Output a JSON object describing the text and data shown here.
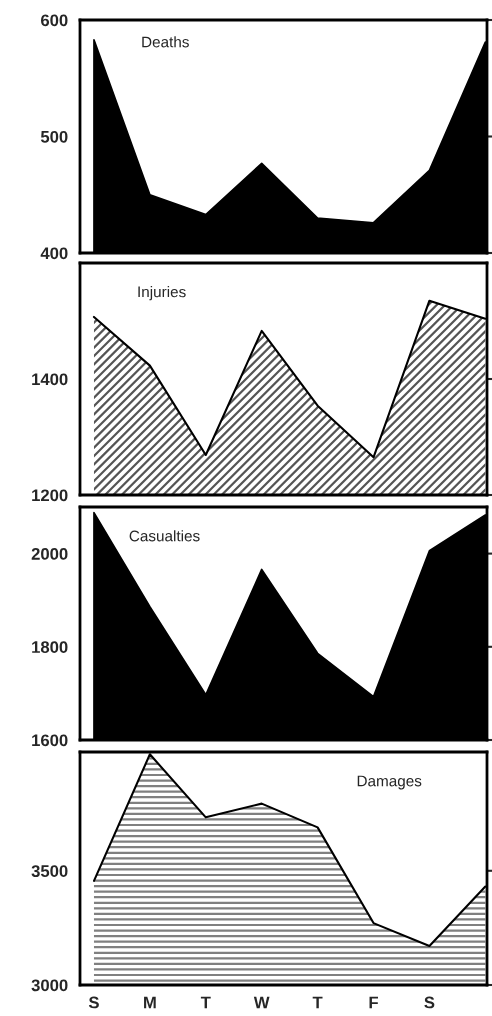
{
  "chart_data": [
    {
      "type": "area",
      "title": "Deaths",
      "categories": [
        null,
        null,
        null,
        null,
        null,
        null,
        null,
        null
      ],
      "series": [
        {
          "color": "#000000",
          "values": [
            583,
            450,
            433,
            477,
            430,
            426,
            471,
            581
          ]
        }
      ],
      "ylim": [
        400,
        600
      ],
      "yticks": [
        400,
        500,
        600
      ]
    },
    {
      "type": "area",
      "title": "Injuries",
      "categories": [
        null,
        null,
        null,
        null,
        null,
        null,
        null,
        null
      ],
      "series": [
        {
          "color": "#555555",
          "values": [
            1507,
            1423,
            1269,
            1483,
            1354,
            1265,
            1535,
            1504
          ]
        }
      ],
      "ylim": [
        1200,
        1600
      ],
      "yticks": [
        1200,
        1400
      ]
    },
    {
      "type": "area",
      "title": "Casualties",
      "categories": [
        null,
        null,
        null,
        null,
        null,
        null,
        null,
        null
      ],
      "series": [
        {
          "color": "#000000",
          "values": [
            2088,
            1886,
            1697,
            1966,
            1786,
            1693,
            2006,
            2083
          ]
        }
      ],
      "ylim": [
        1600,
        2100
      ],
      "yticks": [
        1600,
        1800,
        2000
      ]
    },
    {
      "type": "area",
      "title": "Damages",
      "categories": [
        "S",
        "M",
        "T",
        "W",
        "T",
        "F",
        "S",
        null
      ],
      "series": [
        {
          "color": "#808080",
          "values": [
            3456,
            4010,
            3734,
            3794,
            3690,
            3271,
            3171,
            3431
          ]
        }
      ],
      "ylim": [
        3000,
        4020
      ],
      "yticks": [
        3000,
        3500
      ]
    }
  ]
}
